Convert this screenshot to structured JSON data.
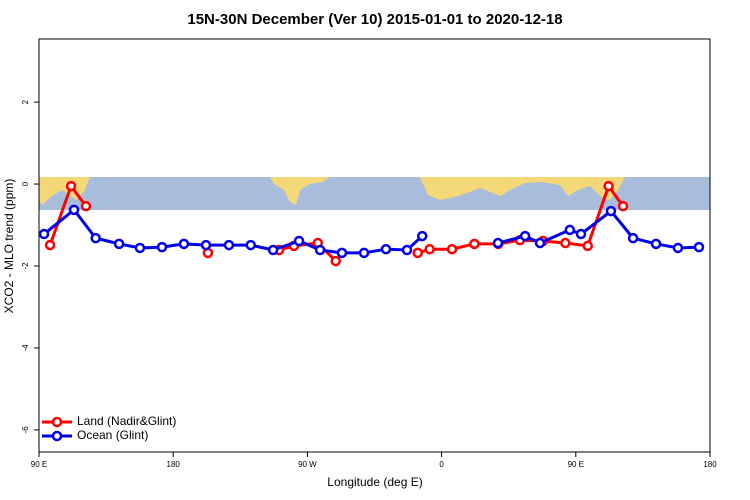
{
  "chart_data": {
    "type": "line",
    "title": "15N-30N December (Ver 10)   2015-01-01 to 2020-12-18",
    "x_label": "Longitude (deg E)",
    "y_label": "XCO2 - MLO trend (ppm)",
    "xlim": [
      90,
      540
    ],
    "ylim": [
      -6.54,
      3.54
    ],
    "xticks": [
      {
        "value": 90,
        "label": "90 E"
      },
      180,
      {
        "value": 270,
        "label": "90 W"
      },
      {
        "value": 360,
        "label": "0"
      },
      {
        "value": 450,
        "label": "90 E"
      },
      {
        "value": 540,
        "label": "180"
      }
    ],
    "yticks": [
      -6,
      -4,
      -2,
      0,
      2
    ],
    "legend": "bottom-left",
    "series": [
      {
        "name": "Land (Nadir&Glint)",
        "color": "#ff0000",
        "x": [
          97.4,
          111.5,
          121.5,
          null,
          203.3,
          null,
          251,
          261,
          277,
          289,
          null,
          344,
          352,
          367,
          382,
          398,
          412.6,
          428,
          443,
          458,
          472,
          481.7
        ],
        "values": [
          -1.49,
          -0.05,
          -0.54,
          null,
          -1.68,
          null,
          -1.61,
          -1.51,
          -1.44,
          -1.88,
          null,
          -1.68,
          -1.59,
          -1.59,
          -1.46,
          -1.46,
          -1.37,
          -1.39,
          -1.44,
          -1.51,
          -0.05,
          -0.54
        ]
      },
      {
        "name": "Ocean (Glint)",
        "color": "#0000ee",
        "x": [
          93.4,
          113.5,
          128,
          143.7,
          157.7,
          172.5,
          187.2,
          202,
          217.4,
          232,
          247,
          264.4,
          278.5,
          293.2,
          308,
          322.7,
          336.8,
          347,
          null,
          397.8,
          416,
          426,
          446,
          453.5,
          473.6,
          488.4,
          503.8,
          518.5,
          532.6
        ],
        "values": [
          -1.22,
          -0.63,
          -1.32,
          -1.46,
          -1.56,
          -1.54,
          -1.46,
          -1.49,
          -1.49,
          -1.49,
          -1.61,
          -1.39,
          -1.61,
          -1.68,
          -1.68,
          -1.59,
          -1.61,
          -1.27,
          null,
          -1.44,
          -1.27,
          -1.44,
          -1.12,
          -1.22,
          -0.66,
          -1.32,
          -1.46,
          -1.56,
          -1.54
        ]
      }
    ]
  }
}
